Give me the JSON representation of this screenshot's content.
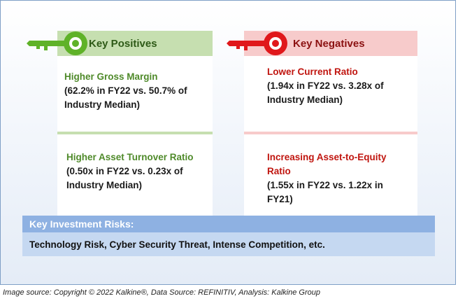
{
  "positives": {
    "title": "Key Positives",
    "items": [
      {
        "title": "Higher Gross Margin",
        "body": "(62.2% in FY22 vs. 50.7% of Industry Median)"
      },
      {
        "title": "Higher Asset Turnover Ratio",
        "body": "(0.50x in FY22 vs. 0.23x of Industry Median)"
      }
    ],
    "color": "#5fb228"
  },
  "negatives": {
    "title": "Key Negatives",
    "items": [
      {
        "title": "Lower Current Ratio",
        "body": "(1.94x in FY22 vs. 3.28x of Industry Median)"
      },
      {
        "title": "Increasing Asset-to-Equity Ratio",
        "body": "(1.55x in FY22 vs. 1.22x in FY21)"
      }
    ],
    "color": "#e0181b"
  },
  "risks": {
    "title": "Key Investment Risks:",
    "body": "Technology Risk, Cyber Security Threat, Intense Competition, etc."
  },
  "footer": {
    "source": "Image source: Copyright © 2022 Kalkine®, Data Source: REFINITIV, Analysis: Kalkine Group"
  },
  "icons": {
    "positive": "green-key-icon",
    "negative": "red-key-icon"
  }
}
